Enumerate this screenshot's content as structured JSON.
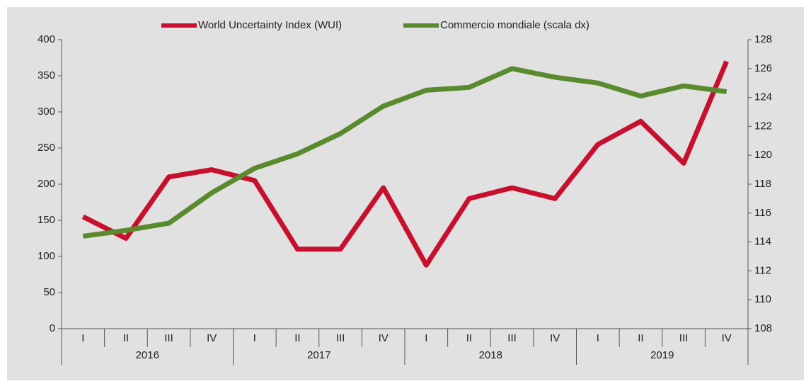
{
  "chart_data": {
    "type": "line",
    "categories": [
      "I",
      "II",
      "III",
      "IV",
      "I",
      "II",
      "III",
      "IV",
      "I",
      "II",
      "III",
      "IV",
      "I",
      "II",
      "III",
      "IV"
    ],
    "x_groups": [
      "2016",
      "2017",
      "2018",
      "2019"
    ],
    "series": [
      {
        "name": "World Uncertainty Index (WUI)",
        "color": "#c8102e",
        "axis": "y",
        "values": [
          155,
          125,
          210,
          220,
          205,
          110,
          110,
          195,
          88,
          180,
          195,
          180,
          255,
          287,
          229,
          370
        ]
      },
      {
        "name": "Commercio mondiale (scala dx)",
        "color": "#5a8a2e",
        "axis": "y2",
        "values": [
          114.4,
          114.8,
          115.3,
          117.4,
          119.1,
          120.1,
          121.5,
          123.4,
          124.5,
          124.7,
          126.0,
          125.4,
          125.0,
          124.1,
          124.8,
          124.4
        ]
      }
    ],
    "ylim": [
      0,
      400
    ],
    "yticks": [
      0,
      50,
      100,
      150,
      200,
      250,
      300,
      350,
      400
    ],
    "y2lim": [
      108,
      128
    ],
    "y2ticks": [
      108,
      110,
      112,
      114,
      116,
      118,
      120,
      122,
      124,
      126,
      128
    ],
    "legend": "top",
    "grid": false
  }
}
